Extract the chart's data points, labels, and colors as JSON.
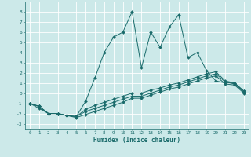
{
  "xlabel": "Humidex (Indice chaleur)",
  "bg_color": "#cce9e9",
  "line_color": "#1a6b6b",
  "grid_color": "#ffffff",
  "xlim": [
    -0.5,
    23.5
  ],
  "ylim": [
    -3.5,
    9.0
  ],
  "xticks": [
    0,
    1,
    2,
    3,
    4,
    5,
    6,
    7,
    8,
    9,
    10,
    11,
    12,
    13,
    14,
    15,
    16,
    17,
    18,
    19,
    20,
    21,
    22,
    23
  ],
  "yticks": [
    -3,
    -2,
    -1,
    0,
    1,
    2,
    3,
    4,
    5,
    6,
    7,
    8
  ],
  "series": [
    {
      "x": [
        0,
        1,
        2,
        3,
        4,
        5,
        6,
        7,
        8,
        9,
        10,
        11,
        12,
        13,
        14,
        15,
        16,
        17,
        18,
        19,
        20,
        21,
        22,
        23
      ],
      "y": [
        -1.0,
        -1.5,
        -2.0,
        -2.0,
        -2.2,
        -2.3,
        -0.8,
        1.5,
        4.0,
        5.5,
        6.0,
        8.0,
        2.5,
        6.0,
        4.5,
        6.5,
        7.7,
        3.5,
        4.0,
        2.2,
        1.2,
        1.0,
        1.0,
        0.2
      ]
    },
    {
      "x": [
        0,
        1,
        2,
        3,
        4,
        5,
        6,
        7,
        8,
        9,
        10,
        11,
        12,
        13,
        14,
        15,
        16,
        17,
        18,
        19,
        20,
        21,
        22,
        23
      ],
      "y": [
        -1.0,
        -1.3,
        -2.0,
        -2.0,
        -2.2,
        -2.3,
        -1.8,
        -1.5,
        -1.2,
        -0.9,
        -0.6,
        -0.3,
        -0.3,
        0.0,
        0.3,
        0.6,
        0.8,
        1.1,
        1.4,
        1.7,
        1.9,
        1.1,
        0.9,
        0.1
      ]
    },
    {
      "x": [
        0,
        1,
        2,
        3,
        4,
        5,
        6,
        7,
        8,
        9,
        10,
        11,
        12,
        13,
        14,
        15,
        16,
        17,
        18,
        19,
        20,
        21,
        22,
        23
      ],
      "y": [
        -1.0,
        -1.3,
        -2.0,
        -2.0,
        -2.2,
        -2.3,
        -1.6,
        -1.2,
        -0.9,
        -0.6,
        -0.3,
        0.0,
        0.0,
        0.3,
        0.5,
        0.8,
        1.0,
        1.3,
        1.6,
        1.9,
        2.1,
        1.2,
        1.0,
        0.2
      ]
    },
    {
      "x": [
        0,
        1,
        2,
        3,
        4,
        5,
        6,
        7,
        8,
        9,
        10,
        11,
        12,
        13,
        14,
        15,
        16,
        17,
        18,
        19,
        20,
        21,
        22,
        23
      ],
      "y": [
        -1.0,
        -1.3,
        -2.0,
        -2.0,
        -2.2,
        -2.4,
        -2.1,
        -1.8,
        -1.5,
        -1.2,
        -0.9,
        -0.5,
        -0.5,
        -0.2,
        0.1,
        0.4,
        0.6,
        0.9,
        1.2,
        1.5,
        1.7,
        0.9,
        0.8,
        0.0
      ]
    }
  ]
}
